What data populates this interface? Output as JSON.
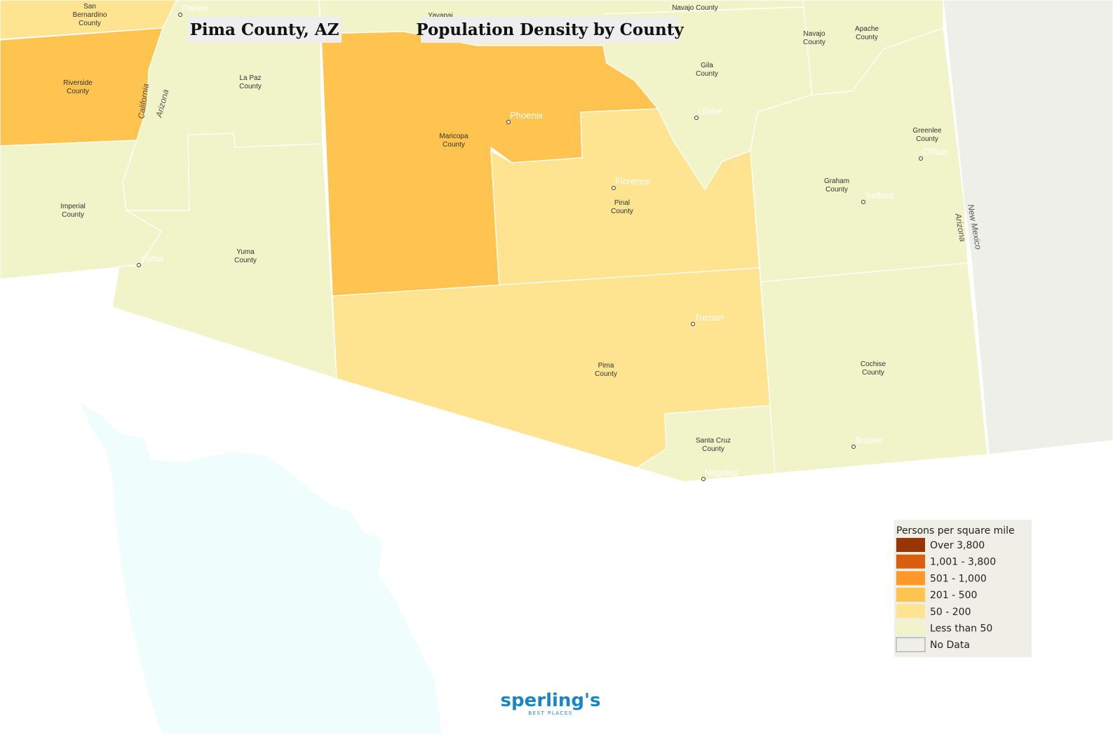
{
  "title": "Pima County, AZ",
  "subtitle": "Population Density by County",
  "counties": [
    {
      "lines": [
        "San",
        "Bernardino",
        "County"
      ]
    },
    {
      "lines": [
        "Riverside",
        "County"
      ]
    },
    {
      "lines": [
        "Imperial",
        "County"
      ]
    },
    {
      "lines": [
        "La Paz",
        "County"
      ]
    },
    {
      "lines": [
        "Yuma",
        "County"
      ]
    },
    {
      "lines": [
        "Maricopa",
        "County"
      ]
    },
    {
      "lines": [
        "Pinal",
        "County"
      ]
    },
    {
      "lines": [
        "Gila",
        "County"
      ]
    },
    {
      "lines": [
        "Navajo County"
      ]
    },
    {
      "lines": [
        "Navajo",
        "County"
      ]
    },
    {
      "lines": [
        "Apache",
        "County"
      ]
    },
    {
      "lines": [
        "Greenlee",
        "County"
      ]
    },
    {
      "lines": [
        "Graham",
        "County"
      ]
    },
    {
      "lines": [
        "Pima",
        "County"
      ]
    },
    {
      "lines": [
        "Santa Cruz",
        "County"
      ]
    },
    {
      "lines": [
        "Cochise",
        "County"
      ]
    },
    {
      "lines": [
        "Yavapai"
      ]
    }
  ],
  "cities": [
    "Parker",
    "Phoenix",
    "Globe",
    "Florence",
    "Clifton",
    "Safford",
    "Tucson",
    "Bisbee",
    "Nogales",
    "Yuma"
  ],
  "state_labels": [
    "California",
    "Arizona",
    "New Mexico",
    "Arizona"
  ],
  "legend": {
    "title": "Persons per square mile",
    "items": [
      {
        "label": "Over 3,800",
        "color": "#993404"
      },
      {
        "label": "1,001 - 3,800",
        "color": "#d95f0e"
      },
      {
        "label": "501 - 1,000",
        "color": "#fe9929"
      },
      {
        "label": "201 - 500",
        "color": "#fec44f"
      },
      {
        "label": "50 - 200",
        "color": "#fee391"
      },
      {
        "label": "Less than 50",
        "color": "#f1f3c8"
      },
      {
        "label": "No Data",
        "color": "#efefea"
      }
    ]
  },
  "logo": {
    "name": "sperling's",
    "tagline": "BEST PLACES"
  }
}
